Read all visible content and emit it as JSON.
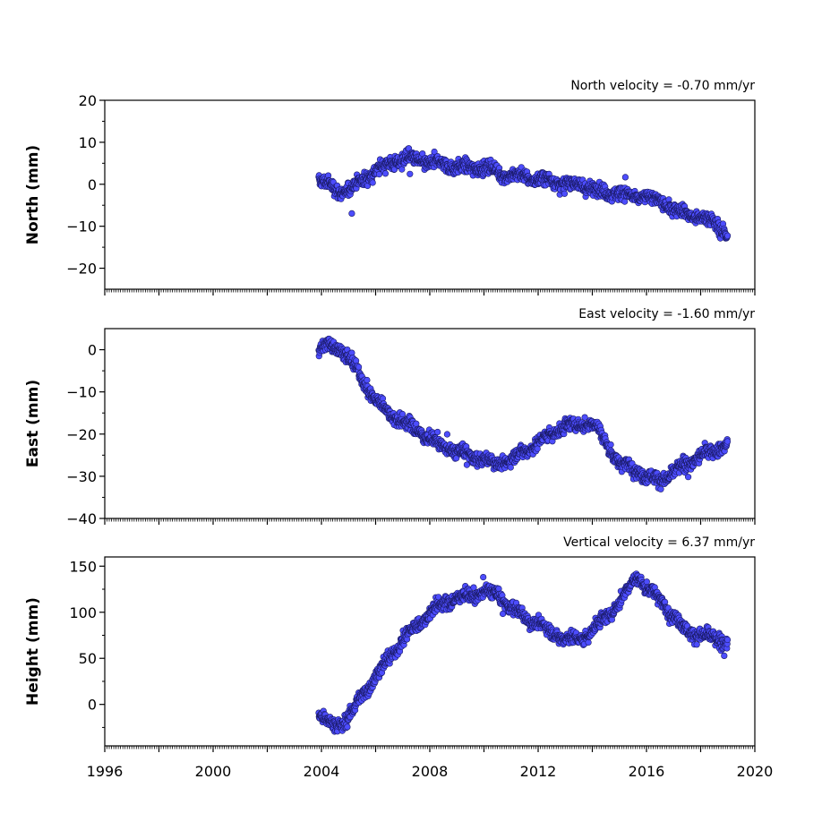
{
  "chart_data": [
    {
      "type": "scatter",
      "title": "North velocity = -0.70 mm/yr",
      "ylabel": "North (mm)",
      "xlim": [
        1996,
        2020
      ],
      "ylim": [
        -25,
        20
      ],
      "yticks": [
        -20,
        -10,
        0,
        10,
        20
      ],
      "yticklabels": [
        "−20",
        "−10",
        "0",
        "10",
        "20"
      ],
      "marker_color": "#4d4dff",
      "marker_edge": "#1a1a66",
      "series": [
        {
          "x": [
            2003.9,
            2004.2,
            2004.5,
            2004.8,
            2005.1,
            2005.5,
            2006.0,
            2006.5,
            2007.0,
            2007.5,
            2008.0,
            2008.5,
            2009.0,
            2009.5,
            2010.0,
            2010.5,
            2011.0,
            2011.5,
            2012.0,
            2012.5,
            2013.0,
            2013.5,
            2014.0,
            2014.5,
            2015.0,
            2015.5,
            2016.0,
            2016.5,
            2017.0,
            2017.5,
            2018.0,
            2018.5,
            2019.0
          ],
          "y": [
            1,
            0,
            -1,
            -2,
            -1,
            1,
            3,
            5,
            6,
            6,
            5,
            5,
            4,
            4,
            4,
            3,
            2,
            2,
            1,
            1,
            0,
            0,
            -1,
            -2,
            -2,
            -3,
            -3,
            -4,
            -6,
            -7,
            -8,
            -9,
            -12
          ]
        }
      ]
    },
    {
      "type": "scatter",
      "title": "East velocity = -1.60 mm/yr",
      "ylabel": "East (mm)",
      "xlim": [
        1996,
        2020
      ],
      "ylim": [
        -40,
        5
      ],
      "yticks": [
        -40,
        -30,
        -20,
        -10,
        0
      ],
      "yticklabels": [
        "−40",
        "−30",
        "−20",
        "−10",
        "0"
      ],
      "marker_color": "#4d4dff",
      "marker_edge": "#1a1a66",
      "series": [
        {
          "x": [
            2003.9,
            2004.3,
            2004.8,
            2005.2,
            2005.6,
            2006.0,
            2006.5,
            2007.0,
            2007.5,
            2008.0,
            2008.5,
            2009.0,
            2009.5,
            2010.0,
            2010.5,
            2011.0,
            2011.5,
            2012.0,
            2012.5,
            2013.0,
            2013.5,
            2014.0,
            2014.3,
            2014.7,
            2015.0,
            2015.5,
            2016.0,
            2016.5,
            2017.0,
            2017.5,
            2018.0,
            2018.5,
            2019.0
          ],
          "y": [
            0,
            1,
            0,
            -4,
            -8,
            -12,
            -15,
            -17,
            -19,
            -21,
            -23,
            -24,
            -25,
            -26,
            -27,
            -26,
            -24,
            -22,
            -20,
            -18,
            -18,
            -17,
            -20,
            -24,
            -27,
            -28,
            -30,
            -31,
            -29,
            -27,
            -25,
            -24,
            -22
          ]
        }
      ]
    },
    {
      "type": "scatter",
      "title": "Vertical velocity = 6.37 mm/yr",
      "ylabel": "Height (mm)",
      "xlim": [
        1996,
        2020
      ],
      "ylim": [
        -45,
        160
      ],
      "yticks": [
        0,
        50,
        100,
        150
      ],
      "yticklabels": [
        "0",
        "50",
        "100",
        "150"
      ],
      "marker_color": "#4d4dff",
      "marker_edge": "#1a1a66",
      "series": [
        {
          "x": [
            2003.9,
            2004.2,
            2004.5,
            2004.8,
            2005.1,
            2005.5,
            2006.0,
            2006.5,
            2007.0,
            2007.5,
            2008.0,
            2008.5,
            2009.0,
            2009.5,
            2010.0,
            2010.5,
            2011.0,
            2011.5,
            2012.0,
            2012.5,
            2013.0,
            2013.5,
            2014.0,
            2014.5,
            2015.0,
            2015.4,
            2015.7,
            2016.0,
            2016.5,
            2017.0,
            2017.5,
            2018.0,
            2018.5,
            2019.0
          ],
          "y": [
            -10,
            -20,
            -22,
            -20,
            -10,
            10,
            30,
            50,
            70,
            85,
            100,
            110,
            115,
            118,
            122,
            120,
            105,
            95,
            88,
            78,
            72,
            70,
            80,
            95,
            110,
            130,
            140,
            125,
            115,
            95,
            80,
            75,
            72,
            68
          ]
        }
      ]
    }
  ],
  "xaxis": {
    "ticks": [
      1996,
      2000,
      2004,
      2008,
      2012,
      2016,
      2020
    ],
    "ticklabels": [
      "1996",
      "2000",
      "2004",
      "2008",
      "2012",
      "2016",
      "2020"
    ]
  }
}
